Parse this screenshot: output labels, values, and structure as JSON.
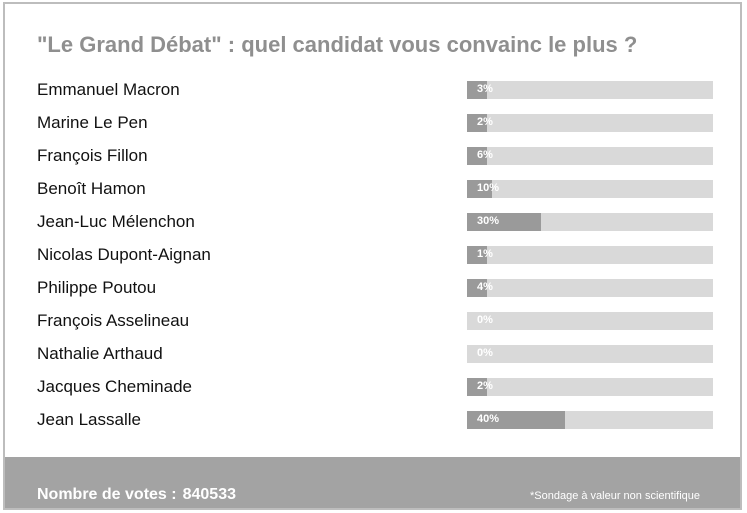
{
  "title": "\"Le Grand Débat\" : quel candidat vous convainc le plus ?",
  "poll": [
    {
      "name": "Emmanuel Macron",
      "percent": 3
    },
    {
      "name": "Marine Le Pen",
      "percent": 2
    },
    {
      "name": "François Fillon",
      "percent": 6
    },
    {
      "name": "Benoît Hamon",
      "percent": 10
    },
    {
      "name": "Jean-Luc Mélenchon",
      "percent": 30
    },
    {
      "name": "Nicolas Dupont-Aignan",
      "percent": 1
    },
    {
      "name": "Philippe Poutou",
      "percent": 4
    },
    {
      "name": "François Asselineau",
      "percent": 0
    },
    {
      "name": "Nathalie Arthaud",
      "percent": 0
    },
    {
      "name": "Jacques Cheminade",
      "percent": 2
    },
    {
      "name": "Jean Lassalle",
      "percent": 40
    }
  ],
  "footer": {
    "votes_label": "Nombre de votes :",
    "votes_count": "840533",
    "disclaimer": "*Sondage à valeur non scientifique"
  },
  "colors": {
    "title": "#8f8f8f",
    "bar_track": "#d9d9d9",
    "bar_fill": "#9a9a9a",
    "footer_bg": "#a3a3a3",
    "frame_border": "#bdbdbd"
  }
}
